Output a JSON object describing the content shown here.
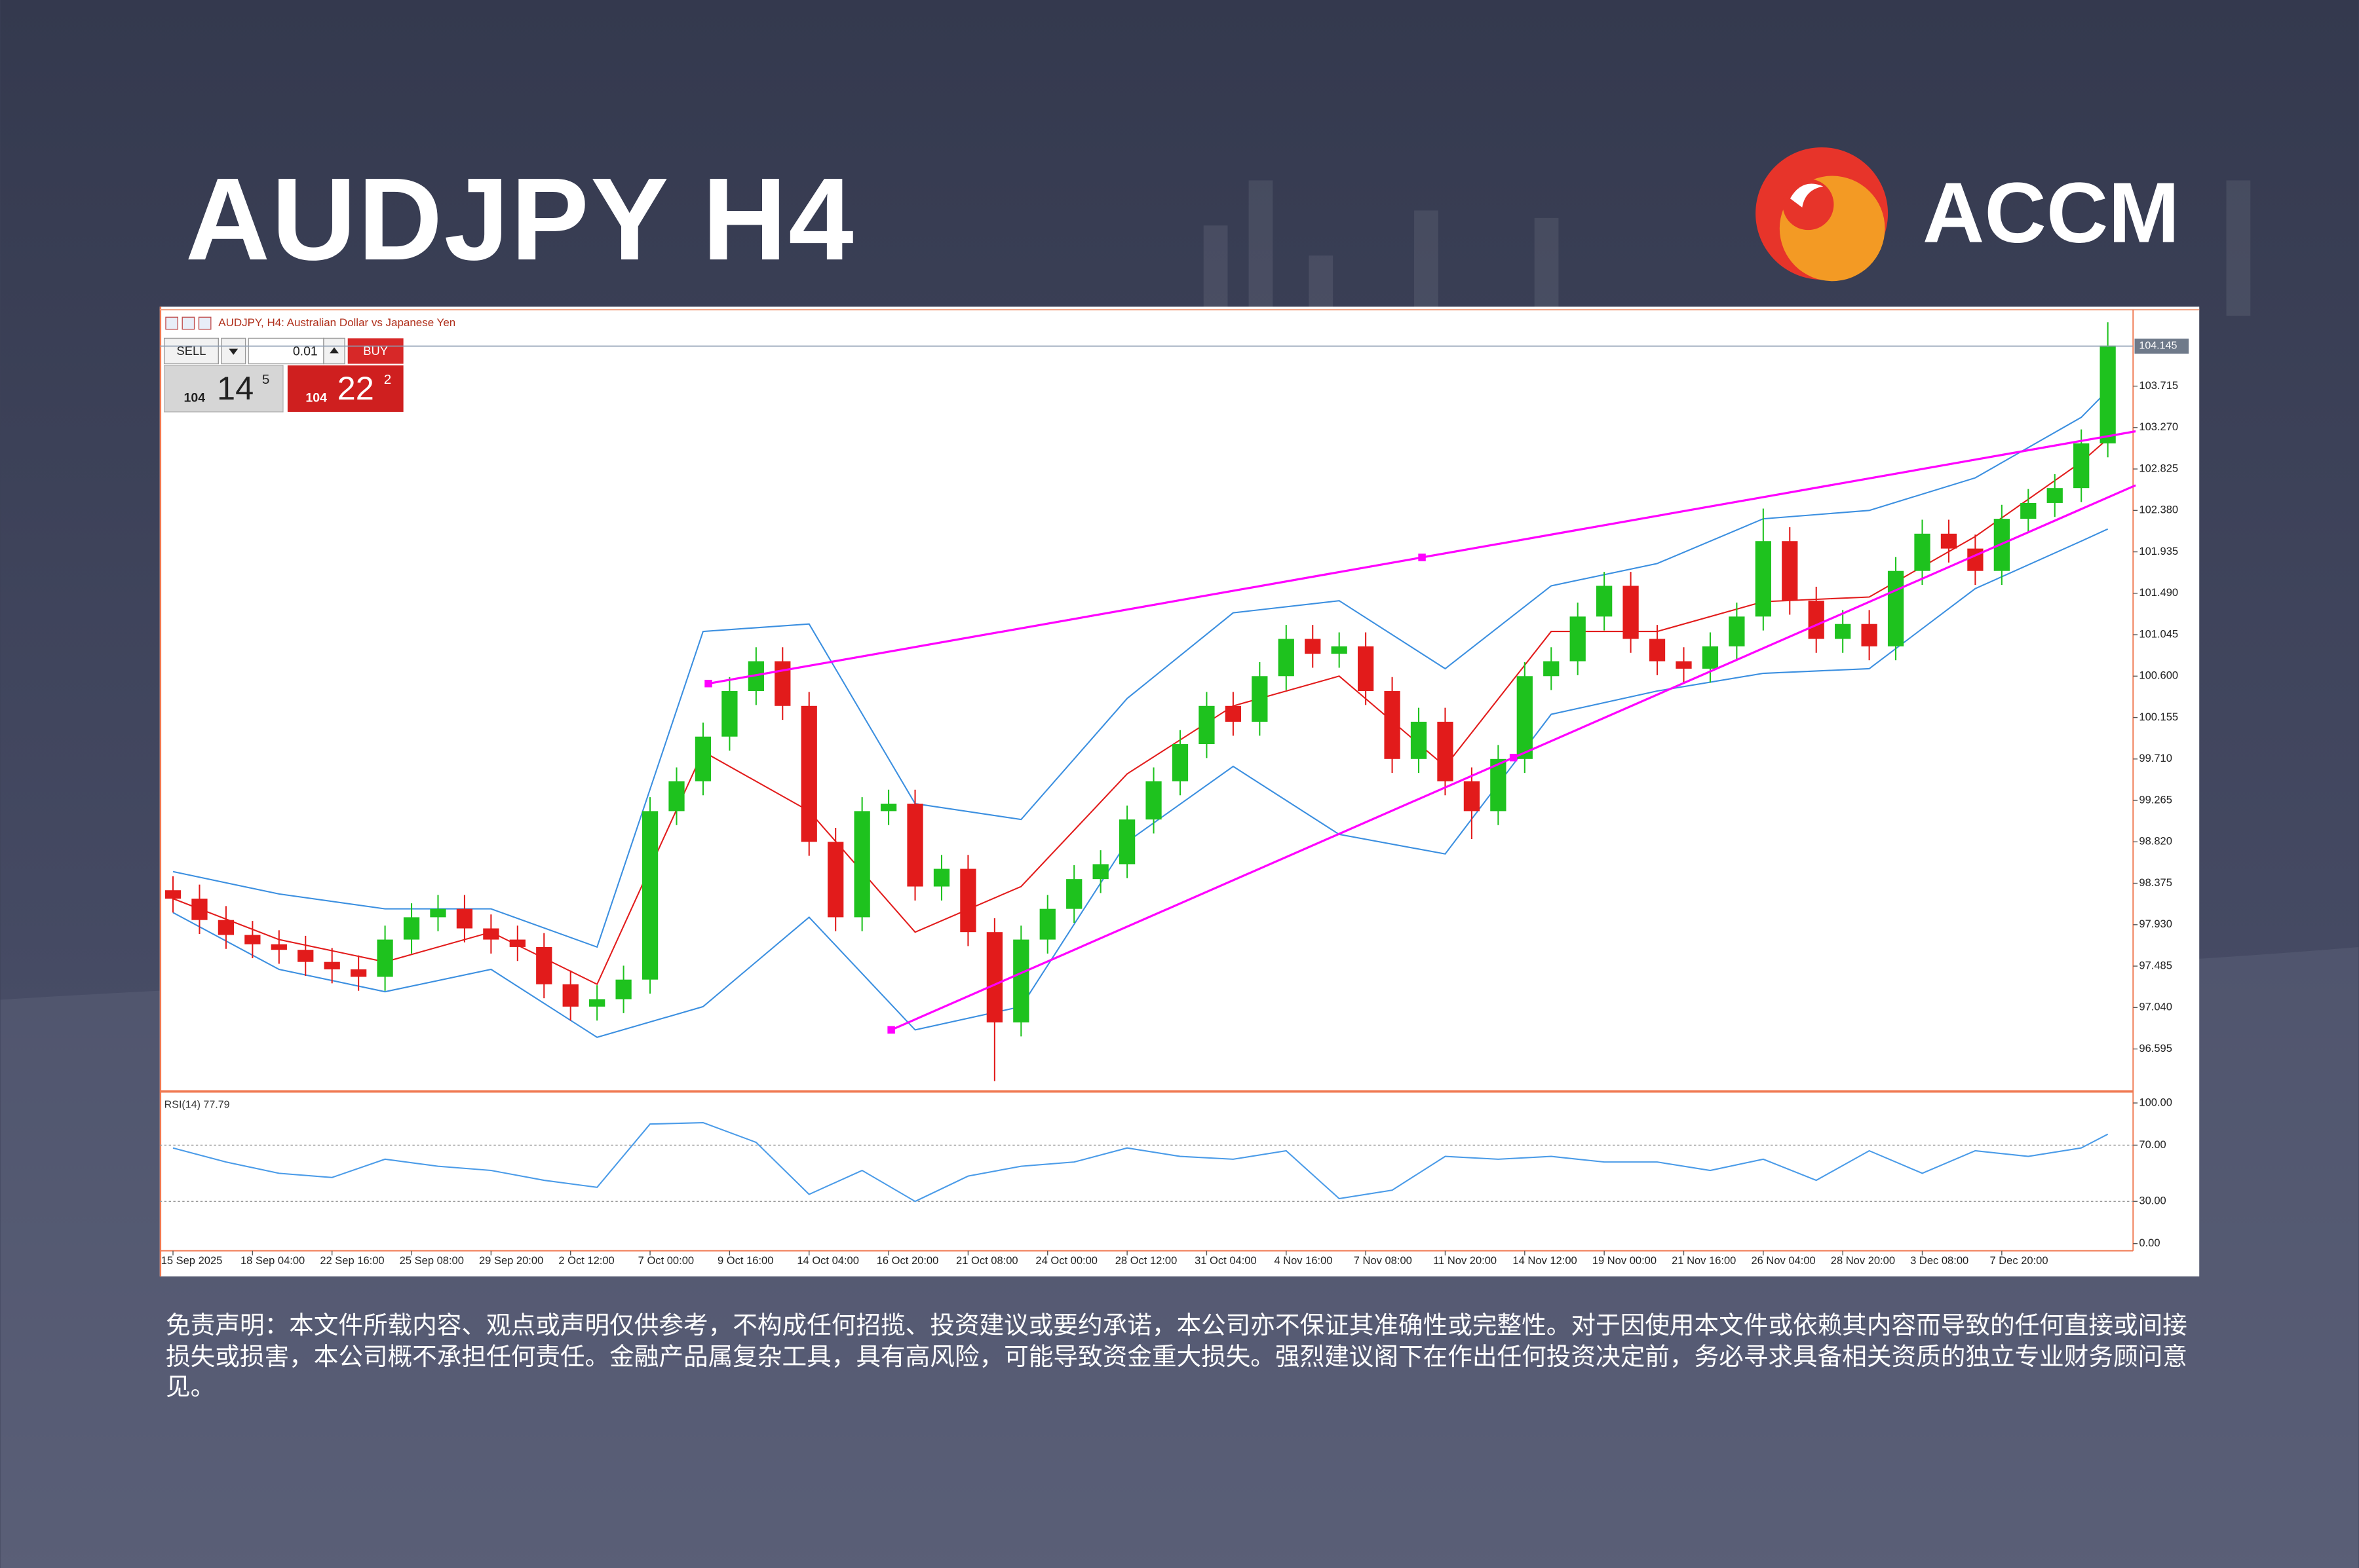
{
  "header": {
    "title": "AUDJPY H4",
    "brand": "ACCM"
  },
  "trade_panel": {
    "sell": "SELL",
    "lot": "0.01",
    "buy": "BUY",
    "bid": {
      "big": "104",
      "main": "14",
      "sup": "5"
    },
    "ask": {
      "big": "104",
      "main": "22",
      "sup": "2"
    }
  },
  "chart_data": {
    "type": "candlestick",
    "title": "AUDJPY, H4:  Australian Dollar vs Japanese Yen",
    "categories": [
      "15 Sep 2025",
      null,
      null,
      "18 Sep 04:00",
      null,
      null,
      "22 Sep 16:00",
      null,
      null,
      "25 Sep 08:00",
      null,
      null,
      "29 Sep 20:00",
      null,
      null,
      "2 Oct 12:00",
      null,
      null,
      "7 Oct 00:00",
      null,
      null,
      "9 Oct 16:00",
      null,
      null,
      "14 Oct 04:00",
      null,
      null,
      "16 Oct 20:00",
      null,
      null,
      "21 Oct 08:00",
      null,
      null,
      "24 Oct 00:00",
      null,
      null,
      "28 Oct 12:00",
      null,
      null,
      "31 Oct 04:00",
      null,
      null,
      "4 Nov 16:00",
      null,
      null,
      "7 Nov 08:00",
      null,
      null,
      "11 Nov 20:00",
      null,
      null,
      "14 Nov 12:00",
      null,
      null,
      "19 Nov 00:00",
      null,
      null,
      "21 Nov 16:00",
      null,
      null,
      "26 Nov 04:00",
      null,
      null,
      "28 Nov 20:00",
      null,
      null,
      "3 Dec 08:00",
      null,
      null,
      "7 Dec 20:00",
      null,
      null,
      null,
      null
    ],
    "open": [
      98.3,
      98.21,
      97.98,
      97.82,
      97.72,
      97.66,
      97.53,
      97.45,
      97.37,
      97.77,
      98.01,
      98.1,
      97.89,
      97.77,
      97.69,
      97.29,
      97.05,
      97.13,
      97.34,
      99.15,
      99.47,
      99.95,
      100.44,
      100.76,
      100.28,
      98.82,
      98.01,
      99.15,
      99.23,
      98.34,
      98.53,
      97.85,
      96.88,
      97.77,
      98.1,
      98.42,
      98.58,
      99.06,
      99.47,
      99.87,
      100.28,
      100.11,
      100.6,
      101.0,
      100.84,
      100.92,
      100.44,
      99.71,
      100.11,
      99.47,
      99.15,
      99.71,
      100.6,
      100.76,
      101.24,
      101.57,
      101.0,
      100.76,
      100.68,
      100.92,
      101.24,
      102.05,
      101.41,
      101.0,
      101.16,
      100.92,
      101.73,
      102.13,
      101.97,
      101.73,
      102.29,
      102.46,
      102.62,
      103.1
    ],
    "high": [
      98.45,
      98.36,
      98.13,
      97.97,
      97.87,
      97.81,
      97.68,
      97.6,
      97.92,
      98.16,
      98.25,
      98.25,
      98.04,
      97.92,
      97.84,
      97.44,
      97.28,
      97.49,
      99.3,
      99.62,
      100.1,
      100.59,
      100.91,
      100.91,
      100.43,
      98.97,
      99.3,
      99.38,
      99.38,
      98.68,
      98.68,
      98.0,
      97.92,
      98.25,
      98.57,
      98.73,
      99.21,
      99.62,
      100.02,
      100.43,
      100.43,
      100.75,
      101.15,
      101.15,
      101.07,
      101.07,
      100.59,
      100.26,
      100.26,
      99.62,
      99.86,
      100.75,
      100.91,
      101.39,
      101.72,
      101.72,
      101.15,
      100.91,
      101.07,
      101.39,
      102.4,
      102.2,
      101.56,
      101.31,
      101.31,
      101.88,
      102.28,
      102.28,
      102.12,
      102.44,
      102.61,
      102.77,
      103.25,
      104.4
    ],
    "low": [
      98.06,
      97.83,
      97.67,
      97.57,
      97.51,
      97.38,
      97.3,
      97.22,
      97.22,
      97.62,
      97.86,
      97.74,
      97.62,
      97.54,
      97.14,
      96.9,
      96.9,
      96.98,
      97.19,
      99.0,
      99.32,
      99.8,
      100.29,
      100.13,
      98.67,
      97.86,
      97.86,
      99.0,
      98.19,
      98.19,
      97.7,
      96.25,
      96.73,
      97.62,
      97.95,
      98.27,
      98.43,
      98.91,
      99.32,
      99.72,
      99.96,
      99.96,
      100.45,
      100.69,
      100.69,
      100.29,
      99.56,
      99.56,
      99.32,
      98.85,
      99.0,
      99.56,
      100.45,
      100.61,
      101.09,
      100.85,
      100.61,
      100.53,
      100.53,
      100.77,
      101.09,
      101.26,
      100.85,
      100.85,
      100.77,
      100.77,
      101.58,
      101.82,
      101.58,
      101.58,
      102.14,
      102.31,
      102.47,
      102.95
    ],
    "close": [
      98.21,
      97.98,
      97.82,
      97.72,
      97.66,
      97.53,
      97.45,
      97.37,
      97.77,
      98.01,
      98.1,
      97.89,
      97.77,
      97.69,
      97.29,
      97.05,
      97.13,
      97.34,
      99.15,
      99.47,
      99.95,
      100.44,
      100.76,
      100.28,
      98.82,
      98.01,
      99.15,
      99.23,
      98.34,
      98.53,
      97.85,
      96.88,
      97.77,
      98.1,
      98.42,
      98.58,
      99.06,
      99.47,
      99.87,
      100.28,
      100.11,
      100.6,
      101.0,
      100.84,
      100.92,
      100.44,
      99.71,
      100.11,
      99.47,
      99.15,
      99.71,
      100.6,
      100.76,
      101.24,
      101.57,
      101.0,
      100.76,
      100.68,
      100.92,
      101.24,
      102.05,
      101.41,
      101.0,
      101.16,
      100.92,
      101.73,
      102.13,
      101.97,
      101.73,
      102.29,
      102.46,
      102.62,
      103.1,
      104.15
    ],
    "up_color": "#1ec21e",
    "down_color": "#e21b1b",
    "ylim": [
      96.155,
      104.52
    ],
    "yticks": [
      96.595,
      {
        "value": 97.04,
        "label": "97.040"
      },
      97.485,
      {
        "value": 97.93,
        "label": "97.930"
      },
      98.375,
      {
        "value": 98.82,
        "label": "98.820"
      },
      99.265,
      {
        "value": 99.71,
        "label": "99.710"
      },
      100.155,
      {
        "value": 100.6,
        "label": "100.600"
      },
      101.045,
      {
        "value": 101.49,
        "label": "101.490"
      },
      101.935,
      {
        "value": 102.38,
        "label": "102.380"
      },
      102.825,
      {
        "value": 103.27,
        "label": "103.270"
      },
      103.715
    ],
    "current_price": 104.145,
    "overlay_x": [
      0,
      4,
      8,
      12,
      16,
      20,
      24,
      28,
      32,
      36,
      40,
      44,
      48,
      52,
      56,
      60,
      64,
      68,
      72,
      73
    ],
    "overlays": [
      {
        "color": "#3b8fe0",
        "values": [
          98.5,
          98.26,
          98.1,
          98.1,
          97.69,
          101.08,
          101.16,
          99.23,
          99.06,
          100.36,
          101.28,
          101.41,
          100.68,
          101.57,
          101.81,
          102.29,
          102.38,
          102.73,
          103.38,
          103.67
        ]
      },
      {
        "color": "#3b8fe0",
        "values": [
          98.06,
          97.45,
          97.21,
          97.45,
          96.72,
          97.05,
          98.01,
          96.8,
          97.05,
          98.82,
          99.63,
          98.9,
          98.69,
          100.19,
          100.44,
          100.63,
          100.68,
          101.54,
          102.05,
          102.18
        ]
      },
      {
        "color": "#e21b1b",
        "values": [
          98.21,
          97.77,
          97.53,
          97.85,
          97.29,
          99.79,
          99.15,
          97.85,
          98.34,
          99.55,
          100.28,
          100.6,
          99.63,
          101.08,
          101.08,
          101.4,
          101.45,
          102.1,
          102.9,
          103.15
        ]
      }
    ],
    "trendlines": [
      {
        "color": "#ff00ff",
        "x": [
          20.2,
          74.05
        ],
        "y": [
          100.52,
          103.23
        ]
      },
      {
        "color": "#ff00ff",
        "x": [
          27.1,
          74.05
        ],
        "y": [
          96.8,
          102.65
        ]
      }
    ],
    "rsi": {
      "label": "RSI(14) 77.79",
      "color": "#4a9be8",
      "x": [
        0,
        2,
        4,
        6,
        8,
        10,
        12,
        14,
        16,
        18,
        20,
        22,
        24,
        26,
        28,
        30,
        32,
        34,
        36,
        38,
        40,
        42,
        44,
        46,
        48,
        50,
        52,
        54,
        56,
        58,
        60,
        62,
        64,
        66,
        68,
        70,
        72,
        73
      ],
      "values": [
        68,
        58,
        50,
        47,
        60,
        55,
        52,
        45,
        40,
        85,
        86,
        72,
        35,
        52,
        30,
        48,
        55,
        58,
        68,
        62,
        60,
        66,
        32,
        38,
        62,
        60,
        62,
        58,
        58,
        52,
        60,
        45,
        66,
        50,
        66,
        62,
        68,
        77.79
      ],
      "ylim": [
        -3,
        105
      ],
      "yticks": [
        {
          "value": 100,
          "label": "100.00"
        },
        {
          "value": 70,
          "label": "70.00"
        },
        {
          "value": 30,
          "label": "30.00"
        },
        {
          "value": 0,
          "label": "0.00"
        }
      ],
      "levels": [
        70,
        30
      ]
    }
  },
  "disclaimer": "免责声明：本文件所载内容、观点或声明仅供参考，不构成任何招揽、投资建议或要约承诺，本公司亦不保证其准确性或完整性。对于因使用本文件或依赖其内容而导致的任何直接或间接损失或损害，本公司概不承担任何责任。金融产品属复杂工具，具有高风险，可能导致资金重大损失。强烈建议阁下在作出任何投资决定前，务必寻求具备相关资质的独立专业财务顾问意见。"
}
